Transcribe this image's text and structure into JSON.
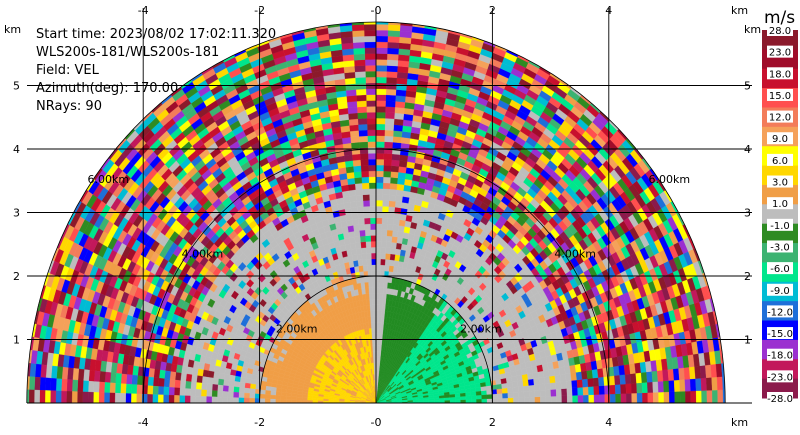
{
  "info": {
    "start_time": "Start time: 2023/08/02 17:02:11.320",
    "instrument": "WLS200s-181/WLS200s-181",
    "field": "Field: VEL",
    "azimuth": "Azimuth(deg): 170.00",
    "nrays": "NRays: 90"
  },
  "axes": {
    "x_ticks": [
      "-4",
      "-2",
      "-0",
      "2",
      "4"
    ],
    "x_tick_values": [
      -4,
      -2,
      0,
      2,
      4
    ],
    "y_ticks": [
      "1",
      "2",
      "3",
      "4",
      "5"
    ],
    "y_tick_values": [
      1,
      2,
      3,
      4,
      5
    ],
    "unit_top_left": "km",
    "unit_top_right": "km",
    "unit_bottom_right": "km",
    "x_range_km": [
      -6,
      6
    ],
    "y_range_km": [
      0,
      6
    ]
  },
  "range_rings": {
    "labels": [
      "2.00km",
      "4.00km",
      "6.00km"
    ],
    "radii_km": [
      2,
      4,
      6
    ],
    "left_labels": [
      "2.00km",
      "4.00km",
      "6.00km"
    ],
    "right_labels": [
      "2.00km",
      "4.00km",
      "6.00km"
    ]
  },
  "colorbar": {
    "title": "m/s",
    "labels": [
      "28.0",
      "23.0",
      "18.0",
      "15.0",
      "12.0",
      "9.0",
      "6.0",
      "3.0",
      "1.0",
      "-1.0",
      "-3.0",
      "-6.0",
      "-9.0",
      "-12.0",
      "-15.0",
      "-18.0",
      "-23.0",
      "-28.0"
    ],
    "colors": [
      "#8b1a2b",
      "#a00c2a",
      "#c8102e",
      "#ff4f4f",
      "#f37c5a",
      "#f5a15a",
      "#ffff00",
      "#ffd700",
      "#f09e46",
      "#bdbdbd",
      "#2e8b22",
      "#3cb371",
      "#00e68c",
      "#00bcd4",
      "#1e6fd9",
      "#0000ff",
      "#9b30d0",
      "#c2185b",
      "#8b1a4b"
    ]
  },
  "colors": {
    "near_approaching": "#228b22",
    "near_approaching_light": "#00e68c",
    "near_receding": "#f09e46",
    "near_receding_strong": "#ffd700",
    "noise_floor": "#bdbdbd"
  }
}
